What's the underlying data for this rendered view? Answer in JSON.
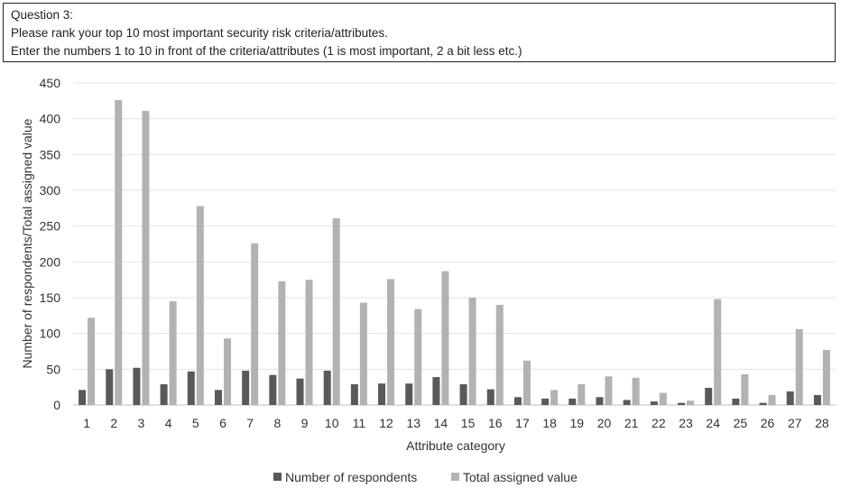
{
  "question": {
    "heading": "Question 3:",
    "line1": "Please rank your top 10 most important security risk criteria/attributes.",
    "line2": "Enter the numbers 1 to 10 in front of the criteria/attributes (1 is most important, 2 a bit less etc.)"
  },
  "chart_data": {
    "type": "bar",
    "title": "",
    "xlabel": "Attribute category",
    "ylabel": "Number of respondents/Total  assigned  value",
    "ylim": [
      0,
      450
    ],
    "yticks": [
      0,
      50,
      100,
      150,
      200,
      250,
      300,
      350,
      400,
      450
    ],
    "grid": true,
    "legend_position": "bottom",
    "categories": [
      "1",
      "2",
      "3",
      "4",
      "5",
      "6",
      "7",
      "8",
      "9",
      "10",
      "11",
      "12",
      "13",
      "14",
      "15",
      "16",
      "17",
      "18",
      "19",
      "20",
      "21",
      "22",
      "23",
      "24",
      "25",
      "26",
      "27",
      "28"
    ],
    "series": [
      {
        "name": "Number of respondents",
        "color": "#595959",
        "values": [
          21,
          50,
          52,
          29,
          47,
          21,
          48,
          42,
          37,
          48,
          29,
          30,
          30,
          39,
          29,
          22,
          11,
          9,
          9,
          11,
          7,
          5,
          3,
          24,
          9,
          3,
          19,
          14
        ]
      },
      {
        "name": "Total assigned value",
        "color": "#b2b2b2",
        "values": [
          122,
          426,
          411,
          145,
          278,
          93,
          226,
          173,
          175,
          261,
          143,
          176,
          134,
          187,
          150,
          140,
          62,
          21,
          29,
          40,
          38,
          17,
          6,
          148,
          43,
          14,
          106,
          77
        ]
      }
    ]
  }
}
